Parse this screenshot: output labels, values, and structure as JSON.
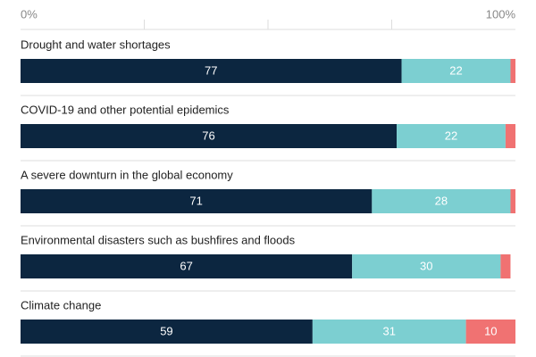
{
  "chart_data": {
    "type": "stacked-bar-horizontal",
    "categories": [
      "Drought and water shortages",
      "COVID-19 and other potential epidemics",
      "A severe downturn in the global economy",
      "Environmental disasters such as bushfires and floods",
      "Climate change"
    ],
    "series": [
      {
        "color": "#0c2640",
        "values": [
          77,
          76,
          71,
          67,
          59
        ]
      },
      {
        "color": "#7ccfd1",
        "values": [
          22,
          22,
          28,
          30,
          31
        ]
      },
      {
        "color": "#f07272",
        "values": [
          1,
          2,
          1,
          2,
          10
        ]
      }
    ],
    "xlim": [
      0,
      100
    ],
    "xticks": [
      {
        "value": 0,
        "label": "0%"
      },
      {
        "value": 25,
        "label": null
      },
      {
        "value": 50,
        "label": null
      },
      {
        "value": 75,
        "label": null
      },
      {
        "value": 100,
        "label": "100%"
      }
    ]
  }
}
